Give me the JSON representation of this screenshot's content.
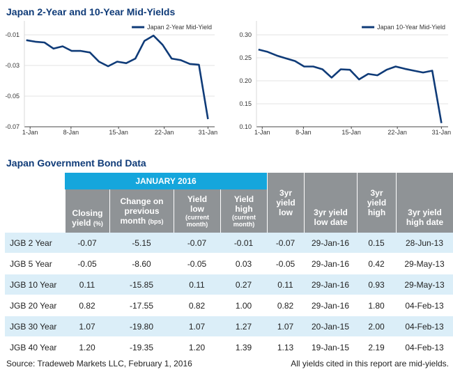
{
  "title": "Japan 2-Year and 10-Year Mid-Yields",
  "table_title": "Japan Government Bond Data",
  "chart_data": [
    {
      "type": "line",
      "legend_position": "top-right",
      "ylim": [
        -0.07,
        -0.01
      ],
      "yticks": [
        -0.01,
        -0.03,
        -0.05,
        -0.07
      ],
      "ytick_labels": [
        "-0.01",
        "-0.03",
        "-0.05",
        "-0.07"
      ],
      "xticks": [
        "1-Jan",
        "8-Jan",
        "15-Jan",
        "22-Jan",
        "31-Jan"
      ],
      "series": [
        {
          "name": "Japan 2-Year Mid-Yield",
          "color": "#0f3b78",
          "values": [
            -0.0135,
            -0.0145,
            -0.015,
            -0.019,
            -0.0175,
            -0.0205,
            -0.0205,
            -0.0215,
            -0.0275,
            -0.0305,
            -0.0275,
            -0.0285,
            -0.0255,
            -0.014,
            -0.0105,
            -0.0165,
            -0.0255,
            -0.0265,
            -0.029,
            -0.0295,
            -0.065
          ]
        }
      ]
    },
    {
      "type": "line",
      "legend_position": "top-right",
      "ylim": [
        0.1,
        0.3
      ],
      "yticks": [
        0.3,
        0.25,
        0.2,
        0.15,
        0.1
      ],
      "ytick_labels": [
        "0.30",
        "0.25",
        "0.20",
        "0.15",
        "0.10"
      ],
      "xticks": [
        "1-Jan",
        "8-Jan",
        "15-Jan",
        "22-Jan",
        "31-Jan"
      ],
      "series": [
        {
          "name": "Japan 10-Year Mid-Yield",
          "color": "#0f3b78",
          "values": [
            0.268,
            0.263,
            0.255,
            0.249,
            0.243,
            0.231,
            0.231,
            0.225,
            0.207,
            0.225,
            0.224,
            0.203,
            0.215,
            0.212,
            0.224,
            0.231,
            0.226,
            0.222,
            0.218,
            0.222,
            0.108
          ]
        }
      ]
    }
  ],
  "table": {
    "band_label": "JANUARY 2016",
    "headers": [
      {
        "lines": [],
        "sub": ""
      },
      {
        "lines": [
          "Closing",
          "yield"
        ],
        "inline_sub": "(%)"
      },
      {
        "lines": [
          "Change on",
          "previous",
          "month"
        ],
        "inline_sub": "(bps)"
      },
      {
        "lines": [
          "Yield",
          "low"
        ],
        "sub": [
          "(current",
          "month)"
        ]
      },
      {
        "lines": [
          "Yield",
          "high"
        ],
        "sub": [
          "(current",
          "month)"
        ]
      },
      {
        "lines": [
          "3yr",
          "yield",
          "low"
        ]
      },
      {
        "lines": [
          "3yr yield",
          "low date"
        ]
      },
      {
        "lines": [
          "3yr",
          "yield",
          "high"
        ]
      },
      {
        "lines": [
          "3yr yield",
          "high date"
        ]
      }
    ],
    "rows": [
      [
        "JGB 2 Year",
        "-0.07",
        "-5.15",
        "-0.07",
        "-0.01",
        "-0.07",
        "29-Jan-16",
        "0.15",
        "28-Jun-13"
      ],
      [
        "JGB 5 Year",
        "-0.05",
        "-8.60",
        "-0.05",
        "0.03",
        "-0.05",
        "29-Jan-16",
        "0.42",
        "29-May-13"
      ],
      [
        "JGB 10 Year",
        "0.11",
        "-15.85",
        "0.11",
        "0.27",
        "0.11",
        "29-Jan-16",
        "0.93",
        "29-May-13"
      ],
      [
        "JGB 20 Year",
        "0.82",
        "-17.55",
        "0.82",
        "1.00",
        "0.82",
        "29-Jan-16",
        "1.80",
        "04-Feb-13"
      ],
      [
        "JGB 30 Year",
        "1.07",
        "-19.80",
        "1.07",
        "1.27",
        "1.07",
        "20-Jan-15",
        "2.00",
        "04-Feb-13"
      ],
      [
        "JGB 40 Year",
        "1.20",
        "-19.35",
        "1.20",
        "1.39",
        "1.13",
        "19-Jan-15",
        "2.19",
        "04-Feb-13"
      ]
    ]
  },
  "footer": {
    "source": "Source: Tradeweb Markets LLC, February 1, 2016",
    "note": "All yields cited in this report are mid-yields."
  },
  "colors": {
    "title": "#0f3b78",
    "line": "#0f3b78",
    "band": "#15a6dc",
    "header_gray": "#8f9396",
    "row_stripe": "#dbeef8"
  }
}
